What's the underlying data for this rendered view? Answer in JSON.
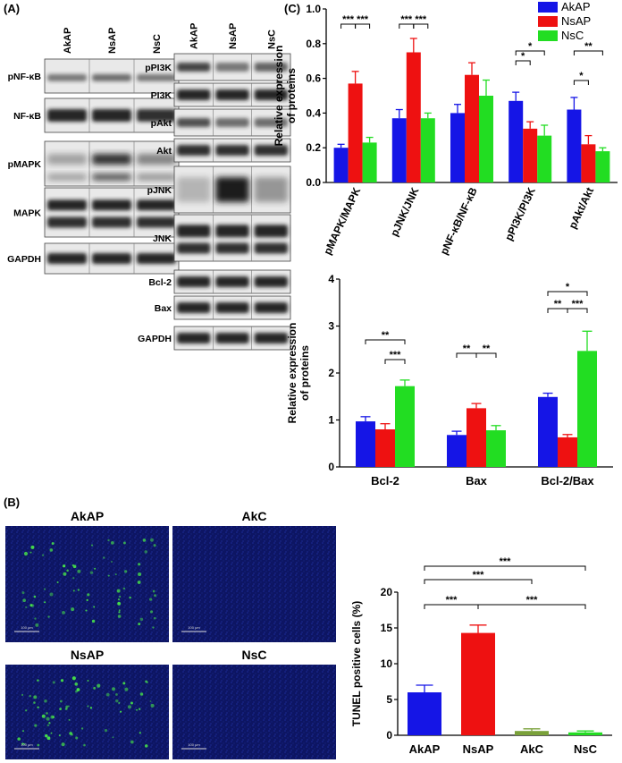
{
  "panels": {
    "a": "(A)",
    "b": "(B)",
    "c": "(C)"
  },
  "colors": {
    "AkAP": "#1515e6",
    "NsAP": "#ee1111",
    "NsC": "#22dd22",
    "AkC": "#7aa13a",
    "blot_band": "#2a2a2a"
  },
  "blots": {
    "left_lanes": [
      "AkAP",
      "NsAP",
      "NsC"
    ],
    "left_rows": [
      "pNF-κB",
      "NF-κB",
      "pMAPK",
      "MAPK",
      "GAPDH"
    ],
    "right_lanes": [
      "AkAP",
      "NsAP",
      "NsC"
    ],
    "right_rows": [
      "pPI3K",
      "PI3K",
      "pAkt",
      "Akt",
      "pJNK",
      "JNK",
      "Bcl-2",
      "Bax",
      "GAPDH"
    ]
  },
  "micrographs": {
    "tiles": [
      "AkAP",
      "AkC",
      "NsAP",
      "NsC"
    ],
    "scale_bar": "100 μm"
  },
  "chart_data": [
    {
      "id": "c_top",
      "type": "bar",
      "ylabel": [
        "Relative expression",
        "of proteins"
      ],
      "ylim": [
        0,
        1.0
      ],
      "yticks": [
        "0.0",
        "0.2",
        "0.4",
        "0.6",
        "0.8",
        "1.0"
      ],
      "legend": [
        "AkAP",
        "NsAP",
        "NsC"
      ],
      "legend_position": "top-right",
      "categories": [
        "pMAPK/MAPK",
        "pJNK/JNK",
        "pNF-κB/NF-κB",
        "pPI3K/PI3K",
        "pAkt/Akt"
      ],
      "series": [
        {
          "name": "AkAP",
          "values": [
            0.2,
            0.37,
            0.4,
            0.47,
            0.42
          ],
          "err": [
            0.02,
            0.05,
            0.05,
            0.05,
            0.07
          ]
        },
        {
          "name": "NsAP",
          "values": [
            0.57,
            0.75,
            0.62,
            0.31,
            0.22
          ],
          "err": [
            0.07,
            0.08,
            0.07,
            0.04,
            0.05
          ]
        },
        {
          "name": "NsC",
          "values": [
            0.23,
            0.37,
            0.5,
            0.27,
            0.18
          ],
          "err": [
            0.03,
            0.03,
            0.09,
            0.06,
            0.02
          ]
        }
      ],
      "significance": [
        {
          "cat": 0,
          "from": 0,
          "to": 1,
          "label": "***"
        },
        {
          "cat": 0,
          "from": 1,
          "to": 2,
          "label": "***"
        },
        {
          "cat": 1,
          "from": 0,
          "to": 1,
          "label": "***"
        },
        {
          "cat": 1,
          "from": 1,
          "to": 2,
          "label": "***"
        },
        {
          "cat": 3,
          "from": 0,
          "to": 1,
          "label": "*"
        },
        {
          "cat": 3,
          "from": 0,
          "to": 2,
          "label": "*"
        },
        {
          "cat": 4,
          "from": 0,
          "to": 1,
          "label": "*"
        },
        {
          "cat": 4,
          "from": 0,
          "to": 2,
          "label": "**"
        }
      ]
    },
    {
      "id": "c_bottom",
      "type": "bar",
      "ylabel": [
        "Relative expression",
        "of proteins"
      ],
      "ylim": [
        0,
        4
      ],
      "yticks": [
        "0",
        "1",
        "2",
        "3",
        "4"
      ],
      "categories": [
        "Bcl-2",
        "Bax",
        "Bcl-2/Bax"
      ],
      "series": [
        {
          "name": "AkAP",
          "values": [
            0.97,
            0.68,
            1.49
          ],
          "err": [
            0.1,
            0.08,
            0.08
          ]
        },
        {
          "name": "NsAP",
          "values": [
            0.8,
            1.25,
            0.63
          ],
          "err": [
            0.12,
            0.1,
            0.06
          ]
        },
        {
          "name": "NsC",
          "values": [
            1.72,
            0.78,
            2.47
          ],
          "err": [
            0.13,
            0.1,
            0.42
          ]
        }
      ],
      "significance": [
        {
          "cat": 0,
          "from": 0,
          "to": 2,
          "label": "**"
        },
        {
          "cat": 0,
          "from": 1,
          "to": 2,
          "label": "***"
        },
        {
          "cat": 1,
          "from": 0,
          "to": 1,
          "label": "**"
        },
        {
          "cat": 1,
          "from": 1,
          "to": 2,
          "label": "**"
        },
        {
          "cat": 2,
          "from": 0,
          "to": 1,
          "label": "**"
        },
        {
          "cat": 2,
          "from": 1,
          "to": 2,
          "label": "***"
        },
        {
          "cat": 2,
          "from": 0,
          "to": 2,
          "label": "*"
        }
      ]
    },
    {
      "id": "b_tunel",
      "type": "bar",
      "ylabel": [
        "TUNEL positive cells (%)"
      ],
      "ylim": [
        0,
        20
      ],
      "yticks": [
        "0",
        "5",
        "10",
        "15",
        "20"
      ],
      "categories": [
        "AkAP",
        "NsAP",
        "AkC",
        "NsC"
      ],
      "values": [
        6.0,
        14.3,
        0.6,
        0.4
      ],
      "err": [
        1.0,
        1.1,
        0.3,
        0.2
      ],
      "bar_colors": [
        "#1515e6",
        "#ee1111",
        "#7aa13a",
        "#22dd22"
      ],
      "significance": [
        {
          "from": 0,
          "to": 1,
          "label": "***"
        },
        {
          "from": 1,
          "to": 3,
          "label": "***"
        },
        {
          "from": 0,
          "to": 2,
          "label": "***"
        },
        {
          "from": 0,
          "to": 3,
          "label": "***"
        }
      ]
    }
  ]
}
